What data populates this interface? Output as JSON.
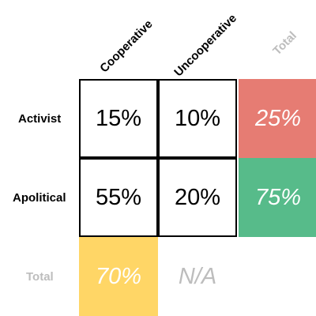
{
  "chart_data": {
    "type": "table",
    "columns": [
      "Cooperative",
      "Uncooperative"
    ],
    "rows": [
      "Activist",
      "Apolitical"
    ],
    "total_label": "Total",
    "cells": [
      [
        "15%",
        "10%"
      ],
      [
        "55%",
        "20%"
      ]
    ],
    "row_totals": [
      "25%",
      "75%"
    ],
    "column_totals": [
      "70%",
      "N/A"
    ],
    "colors": {
      "row_total_top": "#e67c73",
      "row_total_bottom": "#57bb8a",
      "column_total_first": "#ffd666",
      "muted_text": "#bdbdbd"
    }
  }
}
